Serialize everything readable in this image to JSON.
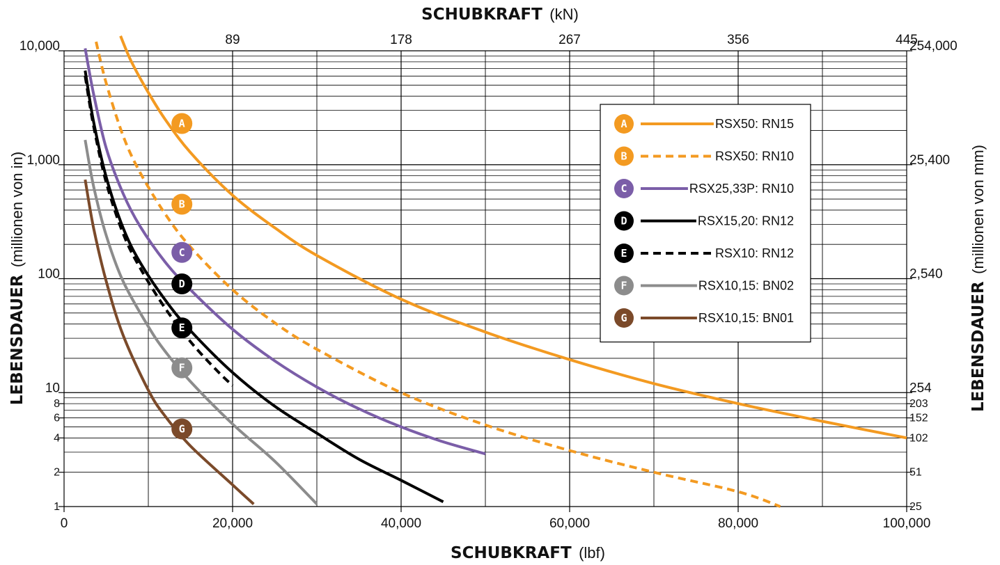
{
  "chart_data": {
    "type": "line",
    "title": "",
    "xlabel": {
      "bold": "SCHUBKRAFT",
      "unit": "(lbf)"
    },
    "x2label": {
      "bold": "SCHUBKRAFT",
      "unit": "(kN)"
    },
    "ylabel": {
      "bold": "LEBENSDAUER",
      "unit": "(millionen von in)"
    },
    "y2label": {
      "bold": "LEBENSDAUER",
      "unit": "(millionen von mm)"
    },
    "xlim": [
      0,
      100000
    ],
    "ylim": [
      1,
      10000
    ],
    "y_scale": "log",
    "grid": true,
    "legend_position": "upper-right",
    "x_ticks": [
      {
        "value": 0,
        "label": "0"
      },
      {
        "value": 20000,
        "label": "20,000"
      },
      {
        "value": 40000,
        "label": "40,000"
      },
      {
        "value": 60000,
        "label": "60,000"
      },
      {
        "value": 80000,
        "label": "80,000"
      },
      {
        "value": 100000,
        "label": "100,000"
      }
    ],
    "x2_ticks": [
      {
        "value": 20000,
        "label": "89"
      },
      {
        "value": 40000,
        "label": "178"
      },
      {
        "value": 60000,
        "label": "267"
      },
      {
        "value": 80000,
        "label": "356"
      },
      {
        "value": 100000,
        "label": "445"
      }
    ],
    "y_ticks": [
      {
        "value": 1,
        "label": "1"
      },
      {
        "value": 2,
        "label": "2"
      },
      {
        "value": 4,
        "label": "4"
      },
      {
        "value": 6,
        "label": "6"
      },
      {
        "value": 8,
        "label": "8"
      },
      {
        "value": 10,
        "label": "10"
      },
      {
        "value": 100,
        "label": "100"
      },
      {
        "value": 1000,
        "label": "1,000"
      },
      {
        "value": 10000,
        "label": "10,000"
      }
    ],
    "y2_ticks": [
      {
        "value": 1,
        "label": "25"
      },
      {
        "value": 2,
        "label": "51"
      },
      {
        "value": 4,
        "label": "102"
      },
      {
        "value": 6,
        "label": "152"
      },
      {
        "value": 8,
        "label": "203"
      },
      {
        "value": 10,
        "label": "254"
      },
      {
        "value": 100,
        "label": "2,540"
      },
      {
        "value": 1000,
        "label": "25,400"
      },
      {
        "value": 10000,
        "label": "254,000"
      }
    ],
    "series": [
      {
        "id": "A",
        "name": "RSX50: RN15",
        "color": "#f39a21",
        "dash": "solid",
        "marker": {
          "x": 12000,
          "y": 2300
        },
        "points": [
          [
            6700,
            13500
          ],
          [
            8000,
            8000
          ],
          [
            10000,
            4300
          ],
          [
            12000,
            2500
          ],
          [
            15000,
            1280
          ],
          [
            20000,
            540
          ],
          [
            25000,
            280
          ],
          [
            30000,
            160
          ],
          [
            40000,
            66
          ],
          [
            50000,
            34
          ],
          [
            60000,
            19.5
          ],
          [
            70000,
            12
          ],
          [
            80000,
            8
          ],
          [
            90000,
            5.6
          ],
          [
            100000,
            4
          ]
        ]
      },
      {
        "id": "B",
        "name": "RSX50: RN10",
        "color": "#f39a21",
        "dash": "dashed",
        "marker": {
          "x": 12000,
          "y": 450
        },
        "points": [
          [
            3800,
            12000
          ],
          [
            5000,
            5200
          ],
          [
            7000,
            1800
          ],
          [
            9000,
            860
          ],
          [
            12000,
            370
          ],
          [
            15000,
            190
          ],
          [
            20000,
            80
          ],
          [
            25000,
            41
          ],
          [
            30000,
            24
          ],
          [
            40000,
            10
          ],
          [
            50000,
            5.2
          ],
          [
            60000,
            3.1
          ],
          [
            70000,
            2.0
          ],
          [
            80000,
            1.35
          ],
          [
            85000,
            1.0
          ]
        ]
      },
      {
        "id": "C",
        "name": "RSX25,33P: RN10",
        "color": "#7b5ea8",
        "dash": "solid",
        "marker": {
          "x": 12000,
          "y": 170
        },
        "points": [
          [
            2500,
            10500
          ],
          [
            3500,
            4200
          ],
          [
            5000,
            1400
          ],
          [
            7000,
            560
          ],
          [
            9000,
            290
          ],
          [
            12000,
            140
          ],
          [
            15000,
            80
          ],
          [
            20000,
            36
          ],
          [
            25000,
            19
          ],
          [
            30000,
            11.2
          ],
          [
            35000,
            7.2
          ],
          [
            40000,
            5.0
          ],
          [
            45000,
            3.7
          ],
          [
            50000,
            2.9
          ]
        ]
      },
      {
        "id": "D",
        "name": "RSX15,20: RN12",
        "color": "#000000",
        "dash": "solid",
        "marker": {
          "x": 12000,
          "y": 90
        },
        "points": [
          [
            2500,
            6700
          ],
          [
            3500,
            2400
          ],
          [
            5000,
            780
          ],
          [
            7000,
            280
          ],
          [
            9000,
            140
          ],
          [
            12000,
            65
          ],
          [
            15000,
            35
          ],
          [
            20000,
            15
          ],
          [
            25000,
            7.6
          ],
          [
            30000,
            4.4
          ],
          [
            35000,
            2.6
          ],
          [
            40000,
            1.7
          ],
          [
            45000,
            1.1
          ]
        ]
      },
      {
        "id": "E",
        "name": "RSX10: RN12",
        "color": "#000000",
        "dash": "dashed",
        "marker": {
          "x": 12000,
          "y": 37
        },
        "points": [
          [
            2500,
            6000
          ],
          [
            3500,
            2200
          ],
          [
            5000,
            700
          ],
          [
            7000,
            250
          ],
          [
            9000,
            125
          ],
          [
            12000,
            55
          ],
          [
            15000,
            28
          ],
          [
            18000,
            16
          ],
          [
            20000,
            11.5
          ]
        ]
      },
      {
        "id": "F",
        "name": "RSX10,15: BN02",
        "color": "#8c8c8c",
        "dash": "solid",
        "marker": {
          "x": 12000,
          "y": 16.5
        },
        "points": [
          [
            2500,
            1650
          ],
          [
            3500,
            650
          ],
          [
            5000,
            240
          ],
          [
            7000,
            95
          ],
          [
            10000,
            38
          ],
          [
            12000,
            23
          ],
          [
            15000,
            12.5
          ],
          [
            20000,
            5.3
          ],
          [
            25000,
            2.5
          ],
          [
            30000,
            1.05
          ]
        ]
      },
      {
        "id": "G",
        "name": "RSX10,15: BN01",
        "color": "#7b4a2a",
        "dash": "solid",
        "marker": {
          "x": 12000,
          "y": 4.8
        },
        "points": [
          [
            2500,
            740
          ],
          [
            3500,
            280
          ],
          [
            5000,
            95
          ],
          [
            7000,
            32
          ],
          [
            10000,
            10.5
          ],
          [
            12000,
            6.2
          ],
          [
            15000,
            3.4
          ],
          [
            20000,
            1.55
          ],
          [
            22500,
            1.05
          ]
        ]
      }
    ]
  }
}
